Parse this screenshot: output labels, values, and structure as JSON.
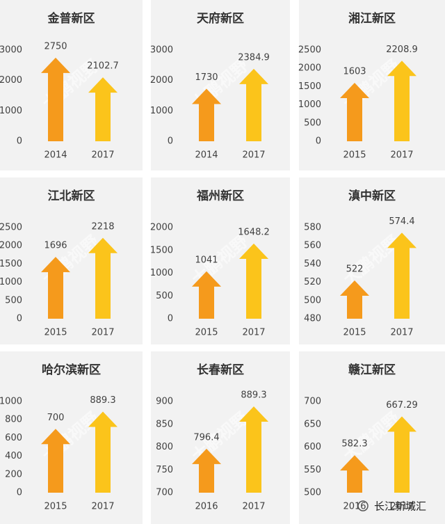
{
  "chart_data": [
    {
      "type": "bar",
      "title": "金普新区",
      "categories": [
        "2014",
        "2017"
      ],
      "values": [
        2750,
        2102.7
      ],
      "colors": [
        "#f59a1c",
        "#fbc41b"
      ],
      "ylim": [
        0,
        3000
      ],
      "yticks": [
        0,
        1000,
        2000,
        3000
      ]
    },
    {
      "type": "bar",
      "title": "天府新区",
      "categories": [
        "2014",
        "2017"
      ],
      "values": [
        1730,
        2384.9
      ],
      "colors": [
        "#f59a1c",
        "#fbc41b"
      ],
      "ylim": [
        0,
        3000
      ],
      "yticks": [
        0,
        1000,
        2000,
        3000
      ]
    },
    {
      "type": "bar",
      "title": "湘江新区",
      "categories": [
        "2015",
        "2017"
      ],
      "values": [
        1603,
        2208.9
      ],
      "colors": [
        "#f59a1c",
        "#fbc41b"
      ],
      "ylim": [
        0,
        2500
      ],
      "yticks": [
        0,
        500,
        1000,
        1500,
        2000,
        2500
      ]
    },
    {
      "type": "bar",
      "title": "江北新区",
      "categories": [
        "2015",
        "2017"
      ],
      "values": [
        1696,
        2218
      ],
      "colors": [
        "#f59a1c",
        "#fbc41b"
      ],
      "ylim": [
        0,
        2500
      ],
      "yticks": [
        0,
        500,
        1000,
        1500,
        2000,
        2500
      ]
    },
    {
      "type": "bar",
      "title": "福州新区",
      "categories": [
        "2015",
        "2017"
      ],
      "values": [
        1041,
        1648.2
      ],
      "colors": [
        "#f59a1c",
        "#fbc41b"
      ],
      "ylim": [
        0,
        2000
      ],
      "yticks": [
        0,
        500,
        1000,
        1500,
        2000
      ]
    },
    {
      "type": "bar",
      "title": "滇中新区",
      "categories": [
        "2015",
        "2017"
      ],
      "values": [
        522,
        574.4
      ],
      "colors": [
        "#f59a1c",
        "#fbc41b"
      ],
      "ylim": [
        480,
        580
      ],
      "yticks": [
        480,
        500,
        520,
        540,
        560,
        580
      ]
    },
    {
      "type": "bar",
      "title": "哈尔滨新区",
      "categories": [
        "2015",
        "2017"
      ],
      "values": [
        700,
        889.3
      ],
      "colors": [
        "#f59a1c",
        "#fbc41b"
      ],
      "ylim": [
        0,
        1000
      ],
      "yticks": [
        0,
        200,
        400,
        600,
        800,
        1000
      ]
    },
    {
      "type": "bar",
      "title": "长春新区",
      "categories": [
        "2016",
        "2017"
      ],
      "values": [
        796.4,
        889.3
      ],
      "colors": [
        "#f59a1c",
        "#fbc41b"
      ],
      "ylim": [
        700,
        900
      ],
      "yticks": [
        700,
        750,
        800,
        850,
        900
      ]
    },
    {
      "type": "bar",
      "title": "赣江新区",
      "categories": [
        "2016",
        "2017"
      ],
      "values": [
        582.3,
        667.29
      ],
      "colors": [
        "#f59a1c",
        "#fbc41b"
      ],
      "ylim": [
        500,
        700
      ],
      "yticks": [
        500,
        550,
        600,
        650,
        700
      ]
    }
  ],
  "watermark": "大鹏视野",
  "footer": "长江新城汇"
}
